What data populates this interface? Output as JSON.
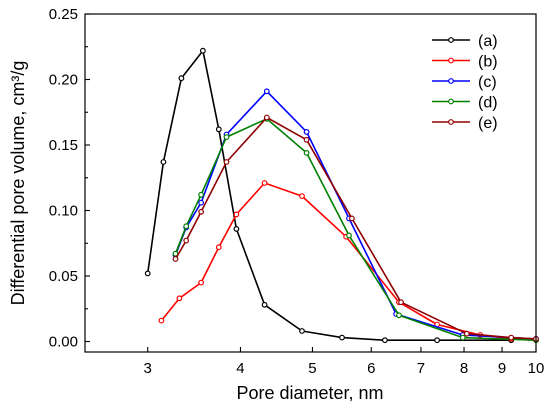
{
  "chart_data": {
    "type": "line",
    "xlabel": "Pore diameter, nm",
    "ylabel": "Differential pore volume, cm³/g",
    "x_scale": "log",
    "xlim": [
      2.47,
      10
    ],
    "ylim": [
      -0.008,
      0.25
    ],
    "x_ticks": [
      3,
      4,
      5,
      6,
      7,
      8,
      9,
      10
    ],
    "x_tick_labels": [
      "3",
      "4",
      "5",
      "6",
      "7",
      "8",
      "9",
      "10"
    ],
    "y_ticks": [
      0,
      0.05,
      0.1,
      0.15,
      0.2,
      0.25
    ],
    "y_tick_labels": [
      "0.00",
      "0.05",
      "0.10",
      "0.15",
      "0.20",
      "0.25"
    ],
    "grid": false,
    "legend_position": "top-right",
    "marker": "open-circle",
    "series": [
      {
        "name": "(a)",
        "color": "#000000",
        "x": [
          3.0,
          3.15,
          3.33,
          3.56,
          3.74,
          3.95,
          4.31,
          4.84,
          5.48,
          6.26,
          7.36,
          9.26
        ],
        "y": [
          0.052,
          0.137,
          0.201,
          0.222,
          0.162,
          0.086,
          0.028,
          0.008,
          0.003,
          0.001,
          0.001,
          0.001
        ]
      },
      {
        "name": "(b)",
        "color": "#ff0000",
        "x": [
          3.13,
          3.31,
          3.54,
          3.74,
          3.95,
          4.31,
          4.84,
          5.55,
          6.54,
          7.36,
          8.41,
          9.26,
          10
        ],
        "y": [
          0.016,
          0.033,
          0.045,
          0.072,
          0.097,
          0.121,
          0.111,
          0.08,
          0.03,
          0.013,
          0.005,
          0.002,
          0.001
        ]
      },
      {
        "name": "(c)",
        "color": "#0000ff",
        "x": [
          3.27,
          3.38,
          3.54,
          3.83,
          4.34,
          4.91,
          5.6,
          6.48,
          7.97,
          10
        ],
        "y": [
          0.066,
          0.087,
          0.106,
          0.158,
          0.191,
          0.16,
          0.094,
          0.021,
          0.005,
          0.002
        ]
      },
      {
        "name": "(d)",
        "color": "#008000",
        "x": [
          3.27,
          3.38,
          3.54,
          3.83,
          4.34,
          4.91,
          5.6,
          6.54,
          7.97,
          10
        ],
        "y": [
          0.067,
          0.088,
          0.112,
          0.156,
          0.17,
          0.144,
          0.081,
          0.02,
          0.003,
          0.001
        ]
      },
      {
        "name": "(e)",
        "color": "#900000",
        "x": [
          3.27,
          3.38,
          3.54,
          3.83,
          4.34,
          4.91,
          5.65,
          6.58,
          8.07,
          9.26,
          10
        ],
        "y": [
          0.063,
          0.077,
          0.099,
          0.137,
          0.171,
          0.154,
          0.094,
          0.03,
          0.006,
          0.003,
          0.002
        ]
      }
    ]
  }
}
